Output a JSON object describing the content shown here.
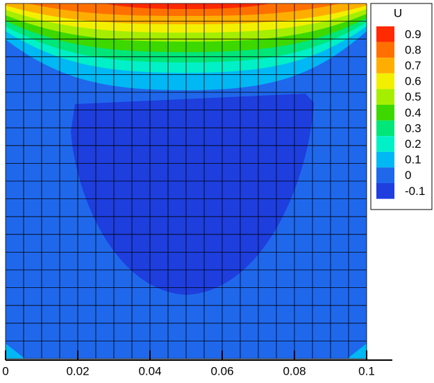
{
  "chart_data": {
    "type": "contour",
    "xlim": [
      0,
      0.1
    ],
    "xticks": [
      0,
      0.02,
      0.04,
      0.06,
      0.08,
      0.1
    ],
    "legend": {
      "title": "U",
      "levels": [
        0.9,
        0.8,
        0.7,
        0.6,
        0.5,
        0.4,
        0.3,
        0.2,
        0.1,
        0,
        -0.1
      ],
      "colors": [
        "#ff2a00",
        "#ff7000",
        "#ffae00",
        "#f2f000",
        "#a6ee00",
        "#3cd800",
        "#00e678",
        "#00f0c8",
        "#00b8f4",
        "#1f68ec",
        "#1e3ede"
      ]
    }
  }
}
